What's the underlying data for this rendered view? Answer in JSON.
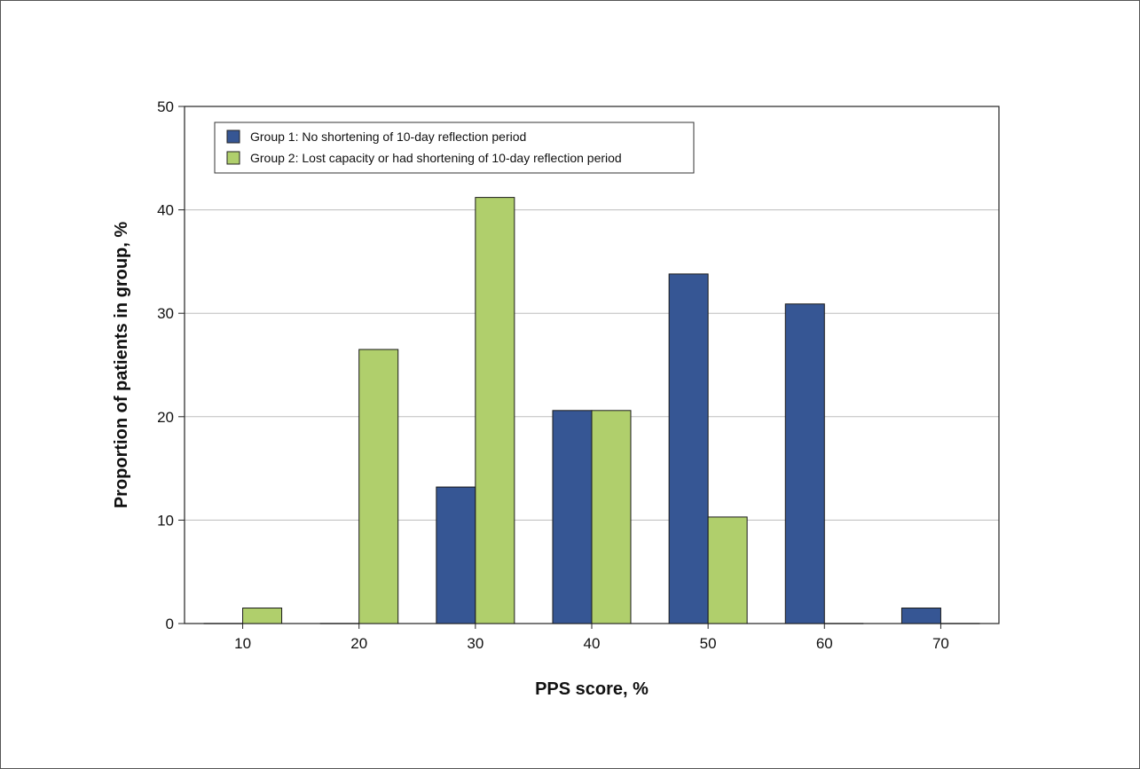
{
  "chart_data": {
    "type": "bar",
    "title": "",
    "xlabel": "PPS score, %",
    "ylabel": "Proportion of patients in group, %",
    "categories": [
      "10",
      "20",
      "30",
      "40",
      "50",
      "60",
      "70"
    ],
    "ylim": [
      0,
      50
    ],
    "yticks": [
      "0",
      "10",
      "20",
      "30",
      "40",
      "50"
    ],
    "grid": "horizontal",
    "legend_position": "top-left",
    "series": [
      {
        "name": "Group 1: No shortening of 10-day reflection period",
        "color": "#365694",
        "values": [
          0,
          0,
          13.2,
          20.6,
          33.8,
          30.9,
          1.5
        ]
      },
      {
        "name": "Group 2: Lost capacity or had shortening of 10-day reflection period",
        "color": "#b0cf6c",
        "values": [
          1.5,
          26.5,
          41.2,
          20.6,
          10.3,
          0,
          0
        ]
      }
    ]
  }
}
